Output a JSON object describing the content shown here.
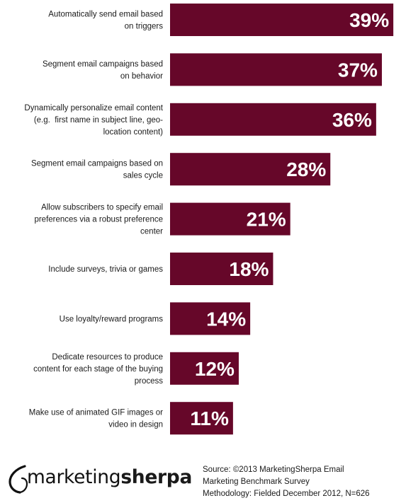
{
  "chart_data": {
    "type": "bar",
    "orientation": "horizontal",
    "categories": [
      [
        "Automatically send email based",
        "on triggers"
      ],
      [
        "Segment email campaigns based",
        "on behavior"
      ],
      [
        "Dynamically personalize email content",
        "(e.g.  first name in subject line, geo-",
        "location content)"
      ],
      [
        "Segment email campaigns based on",
        "sales cycle"
      ],
      [
        "Allow subscribers to specify email",
        "preferences via a robust preference",
        "center"
      ],
      [
        "Include surveys, trivia or games"
      ],
      [
        "Use loyalty/reward programs"
      ],
      [
        "Dedicate resources to produce",
        "content for each stage of the buying",
        "process"
      ],
      [
        "Make use of animated GIF images or",
        "video in design"
      ]
    ],
    "values": [
      39,
      37,
      36,
      28,
      21,
      18,
      14,
      12,
      11
    ],
    "value_labels": [
      "39%",
      "37%",
      "36%",
      "28%",
      "21%",
      "18%",
      "14%",
      "12%",
      "11%"
    ],
    "xlim": [
      0,
      40
    ],
    "bar_color": "#660729",
    "value_label_color": "#ffffff",
    "grid": false,
    "legend": "none"
  },
  "footer": {
    "logo": {
      "part1": "marketing",
      "part2": "sherpa"
    },
    "source_lines": [
      "Source: ©2013 MarketingSherpa Email",
      "Marketing Benchmark Survey",
      "Methodology: Fielded  December 2012, N=626"
    ]
  }
}
